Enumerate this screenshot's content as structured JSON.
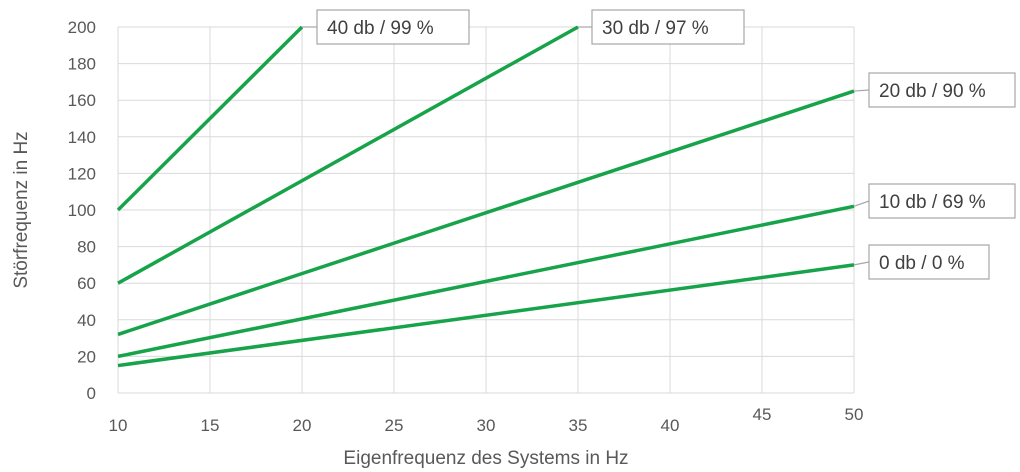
{
  "chart_data": {
    "type": "line",
    "xlabel": "Eigenfrequenz des Systems in Hz",
    "ylabel": "Störfrequenz in Hz",
    "xlim": [
      10,
      50
    ],
    "ylim": [
      0,
      200
    ],
    "x_ticks": [
      10,
      15,
      20,
      25,
      30,
      35,
      40,
      45,
      50
    ],
    "y_ticks": [
      0,
      20,
      40,
      60,
      80,
      100,
      120,
      140,
      160,
      180,
      200
    ],
    "grid": true,
    "line_color": "#17a34a",
    "series": [
      {
        "name": "40 db / 99 %",
        "x": [
          10,
          20
        ],
        "y": [
          100,
          200
        ]
      },
      {
        "name": "30 db / 97 %",
        "x": [
          10,
          35
        ],
        "y": [
          60,
          200
        ]
      },
      {
        "name": "20 db / 90 %",
        "x": [
          10,
          50
        ],
        "y": [
          32,
          165
        ]
      },
      {
        "name": "10 db / 69 %",
        "x": [
          10,
          50
        ],
        "y": [
          20,
          102
        ]
      },
      {
        "name": "0 db / 0 %",
        "x": [
          10,
          50
        ],
        "y": [
          15,
          70
        ]
      }
    ]
  }
}
